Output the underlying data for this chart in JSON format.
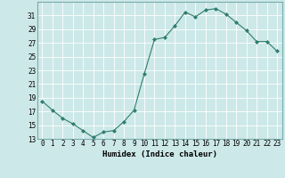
{
  "x": [
    0,
    1,
    2,
    3,
    4,
    5,
    6,
    7,
    8,
    9,
    10,
    11,
    12,
    13,
    14,
    15,
    16,
    17,
    18,
    19,
    20,
    21,
    22,
    23
  ],
  "y": [
    18.5,
    17.2,
    16.0,
    15.2,
    14.2,
    13.2,
    14.0,
    14.2,
    15.5,
    17.2,
    22.5,
    27.5,
    27.8,
    29.5,
    31.5,
    30.8,
    31.8,
    32.0,
    31.2,
    30.0,
    28.8,
    27.2,
    27.2,
    25.8
  ],
  "xlabel": "Humidex (Indice chaleur)",
  "line_color": "#2e7d6e",
  "marker": "D",
  "marker_size": 2.0,
  "bg_color": "#cde8e8",
  "grid_color": "#b0d0d0",
  "ylim": [
    13,
    33
  ],
  "yticks": [
    13,
    15,
    17,
    19,
    21,
    23,
    25,
    27,
    29,
    31
  ],
  "xticks": [
    0,
    1,
    2,
    3,
    4,
    5,
    6,
    7,
    8,
    9,
    10,
    11,
    12,
    13,
    14,
    15,
    16,
    17,
    18,
    19,
    20,
    21,
    22,
    23
  ],
  "xlabel_fontsize": 6.5,
  "tick_fontsize": 5.5
}
